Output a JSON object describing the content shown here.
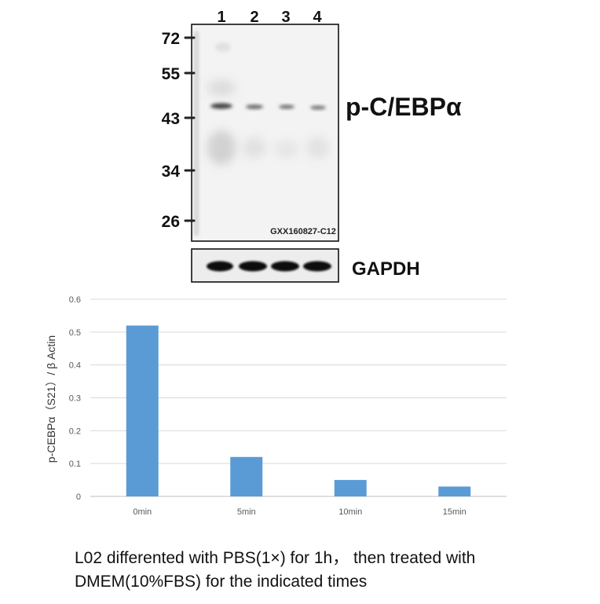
{
  "blot": {
    "lanes": [
      "1",
      "2",
      "3",
      "4"
    ],
    "markers": [
      "72",
      "55",
      "43",
      "34",
      "26"
    ],
    "target_label": "p-C/EBPα",
    "control_label": "GAPDH",
    "watermark": "GXX160827-C12"
  },
  "chart_data": {
    "type": "bar",
    "categories": [
      "0min",
      "5min",
      "10min",
      "15min"
    ],
    "values": [
      0.52,
      0.12,
      0.05,
      0.03
    ],
    "ylabel": "p-CEBPα（S21）/ β Actin",
    "xlabel": "",
    "ylim": [
      0,
      0.6
    ],
    "yticks": [
      "0",
      "0.1",
      "0.2",
      "0.3",
      "0.4",
      "0.5",
      "0.6"
    ],
    "grid": true,
    "bar_color": "#5b9bd5"
  },
  "caption": {
    "line1": "L02 differented with PBS(1×) for 1h， then treated with",
    "line2": "DMEM(10%FBS) for the indicated times"
  }
}
